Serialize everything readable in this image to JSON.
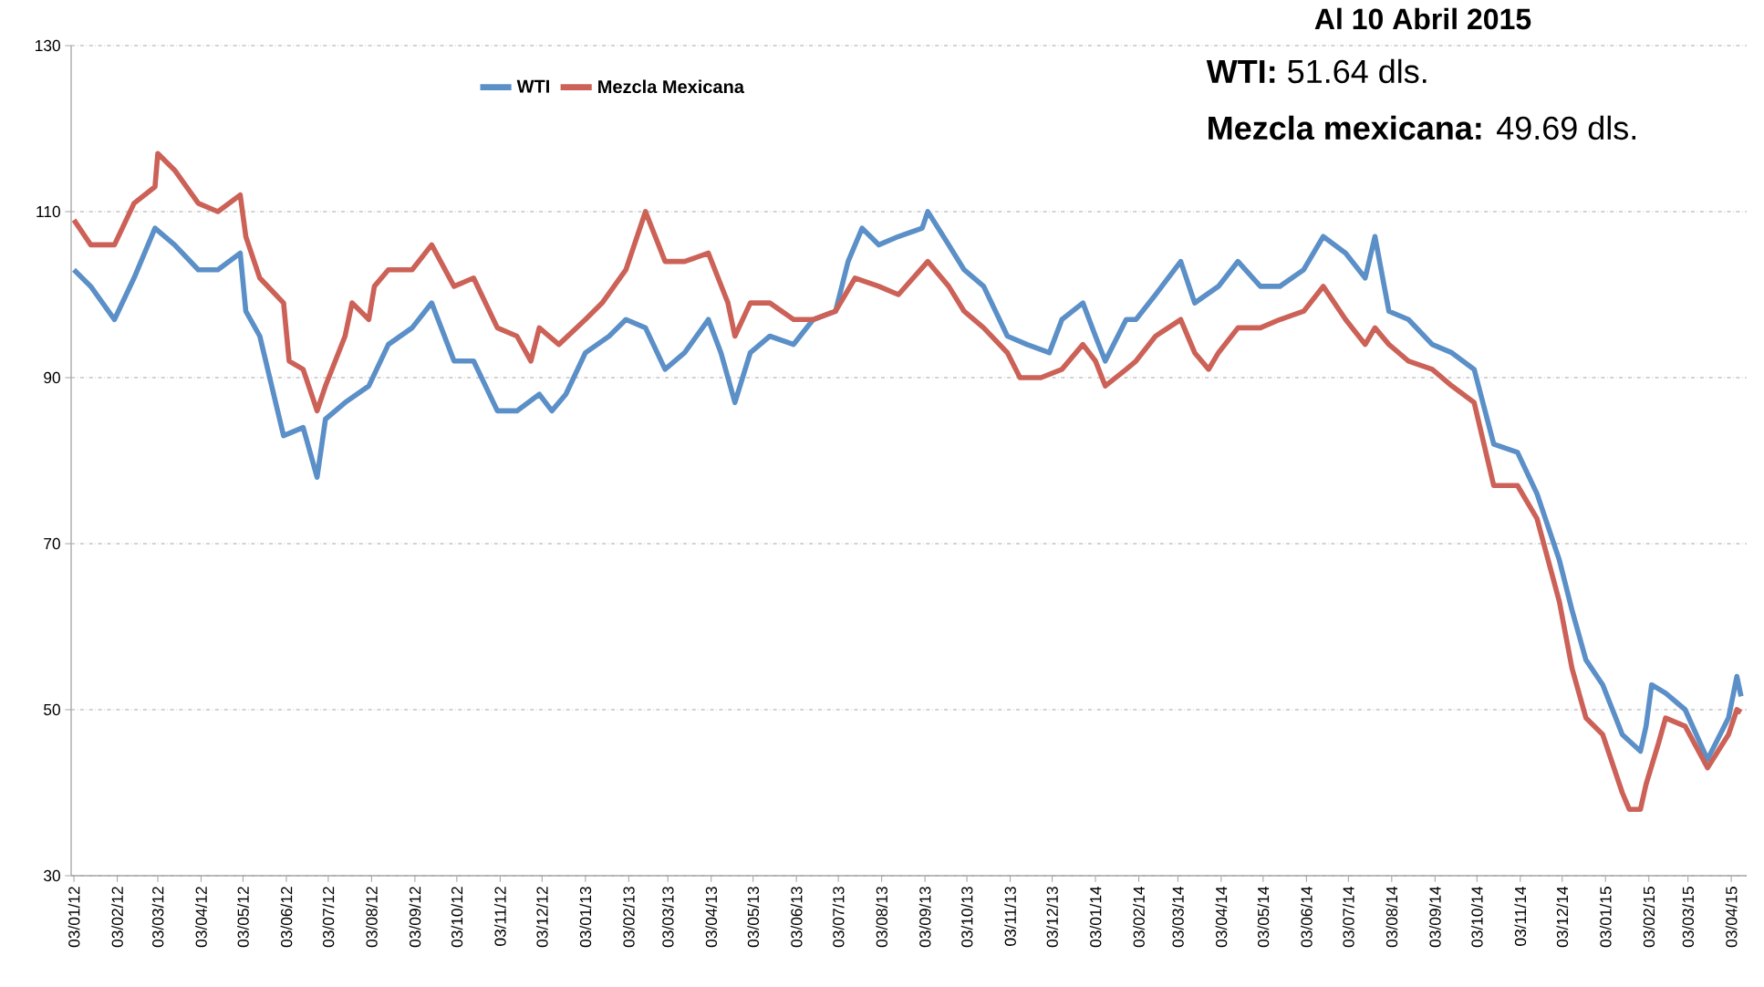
{
  "chart_data": {
    "type": "line",
    "title": "Al 10 Abril 2015",
    "annotations": [
      "**WTI:** 51.64 dls.",
      "**Mezcla mexicana:** 49.69 dls."
    ],
    "xlim": [
      "2012-01-01",
      "2015-04-14"
    ],
    "xticks": [
      {
        "value": "2012-01-03",
        "label": "03/01/12"
      },
      {
        "value": "2012-02-03",
        "label": "03/02/12"
      },
      {
        "value": "2012-03-03",
        "label": "03/03/12"
      },
      {
        "value": "2012-04-03",
        "label": "03/04/12"
      },
      {
        "value": "2012-05-03",
        "label": "03/05/12"
      },
      {
        "value": "2012-06-03",
        "label": "03/06/12"
      },
      {
        "value": "2012-07-03",
        "label": "03/07/12"
      },
      {
        "value": "2012-08-03",
        "label": "03/08/12"
      },
      {
        "value": "2012-09-03",
        "label": "03/09/12"
      },
      {
        "value": "2012-10-03",
        "label": "03/10/12"
      },
      {
        "value": "2012-11-03",
        "label": "03/11/12"
      },
      {
        "value": "2012-12-03",
        "label": "03/12/12"
      },
      {
        "value": "2013-01-03",
        "label": "03/01/13"
      },
      {
        "value": "2013-02-03",
        "label": "03/02/13"
      },
      {
        "value": "2013-03-03",
        "label": "03/03/13"
      },
      {
        "value": "2013-04-03",
        "label": "03/04/13"
      },
      {
        "value": "2013-05-03",
        "label": "03/05/13"
      },
      {
        "value": "2013-06-03",
        "label": "03/06/13"
      },
      {
        "value": "2013-07-03",
        "label": "03/07/13"
      },
      {
        "value": "2013-08-03",
        "label": "03/08/13"
      },
      {
        "value": "2013-09-03",
        "label": "03/09/13"
      },
      {
        "value": "2013-10-03",
        "label": "03/10/13"
      },
      {
        "value": "2013-11-03",
        "label": "03/11/13"
      },
      {
        "value": "2013-12-03",
        "label": "03/12/13"
      },
      {
        "value": "2014-01-03",
        "label": "03/01/14"
      },
      {
        "value": "2014-02-03",
        "label": "03/02/14"
      },
      {
        "value": "2014-03-03",
        "label": "03/03/14"
      },
      {
        "value": "2014-04-03",
        "label": "03/04/14"
      },
      {
        "value": "2014-05-03",
        "label": "03/05/14"
      },
      {
        "value": "2014-06-03",
        "label": "03/06/14"
      },
      {
        "value": "2014-07-03",
        "label": "03/07/14"
      },
      {
        "value": "2014-08-03",
        "label": "03/08/14"
      },
      {
        "value": "2014-09-03",
        "label": "03/09/14"
      },
      {
        "value": "2014-10-03",
        "label": "03/10/14"
      },
      {
        "value": "2014-11-03",
        "label": "03/11/14"
      },
      {
        "value": "2014-12-03",
        "label": "03/12/14"
      },
      {
        "value": "2015-01-03",
        "label": "03/01/15"
      },
      {
        "value": "2015-02-03",
        "label": "03/02/15"
      },
      {
        "value": "2015-03-03",
        "label": "03/03/15"
      },
      {
        "value": "2015-04-03",
        "label": "03/04/15"
      }
    ],
    "ylim": [
      30,
      130
    ],
    "yticks": [
      30,
      50,
      70,
      90,
      110,
      130
    ],
    "grid": "y",
    "legend": "top left",
    "marker": "none",
    "line_style": "solid",
    "series": [
      {
        "name": "WTI",
        "color": "#5b8fc7",
        "x": [
          "2012-01-03",
          "2012-01-15",
          "2012-02-01",
          "2012-02-15",
          "2012-03-01",
          "2012-03-15",
          "2012-04-01",
          "2012-04-15",
          "2012-05-01",
          "2012-05-05",
          "2012-05-15",
          "2012-06-01",
          "2012-06-15",
          "2012-06-25",
          "2012-07-01",
          "2012-07-15",
          "2012-08-01",
          "2012-08-15",
          "2012-09-01",
          "2012-09-15",
          "2012-10-01",
          "2012-10-15",
          "2012-11-01",
          "2012-11-15",
          "2012-12-01",
          "2012-12-10",
          "2012-12-20",
          "2013-01-03",
          "2013-01-20",
          "2013-02-01",
          "2013-02-15",
          "2013-03-01",
          "2013-03-15",
          "2013-04-01",
          "2013-04-10",
          "2013-04-20",
          "2013-05-01",
          "2013-05-15",
          "2013-06-01",
          "2013-06-15",
          "2013-07-01",
          "2013-07-10",
          "2013-07-20",
          "2013-08-01",
          "2013-08-15",
          "2013-09-01",
          "2013-09-05",
          "2013-09-20",
          "2013-10-01",
          "2013-10-15",
          "2013-11-01",
          "2013-11-15",
          "2013-12-01",
          "2013-12-10",
          "2013-12-25",
          "2014-01-03",
          "2014-01-10",
          "2014-01-25",
          "2014-02-01",
          "2014-02-15",
          "2014-03-05",
          "2014-03-15",
          "2014-04-01",
          "2014-04-15",
          "2014-05-01",
          "2014-05-15",
          "2014-06-01",
          "2014-06-15",
          "2014-07-01",
          "2014-07-15",
          "2014-07-22",
          "2014-08-01",
          "2014-08-15",
          "2014-09-01",
          "2014-09-15",
          "2014-10-01",
          "2014-10-15",
          "2014-11-01",
          "2014-11-15",
          "2014-12-01",
          "2014-12-10",
          "2014-12-20",
          "2015-01-01",
          "2015-01-15",
          "2015-01-28",
          "2015-02-01",
          "2015-02-05",
          "2015-02-15",
          "2015-03-01",
          "2015-03-17",
          "2015-04-01",
          "2015-04-07",
          "2015-04-10"
        ],
        "values": [
          103,
          101,
          97,
          102,
          108,
          106,
          103,
          103,
          105,
          98,
          95,
          83,
          84,
          78,
          85,
          87,
          89,
          94,
          96,
          99,
          92,
          92,
          86,
          86,
          88,
          86,
          88,
          93,
          95,
          97,
          96,
          91,
          93,
          97,
          93,
          87,
          93,
          95,
          94,
          97,
          98,
          104,
          108,
          106,
          107,
          108,
          110,
          106,
          103,
          101,
          95,
          94,
          93,
          97,
          99,
          95,
          92,
          97,
          97,
          100,
          104,
          99,
          101,
          104,
          101,
          101,
          103,
          107,
          105,
          102,
          107,
          98,
          97,
          94,
          93,
          91,
          82,
          81,
          76,
          68,
          62,
          56,
          53,
          47,
          45,
          48,
          53,
          52,
          50,
          44,
          49,
          54,
          51.6
        ]
      },
      {
        "name": "Mezcla Mexicana",
        "color": "#cc6157",
        "x": [
          "2012-01-03",
          "2012-01-15",
          "2012-02-01",
          "2012-02-15",
          "2012-03-01",
          "2012-03-03",
          "2012-03-15",
          "2012-04-01",
          "2012-04-15",
          "2012-05-01",
          "2012-05-05",
          "2012-05-15",
          "2012-06-01",
          "2012-06-05",
          "2012-06-15",
          "2012-06-25",
          "2012-07-01",
          "2012-07-15",
          "2012-07-20",
          "2012-08-01",
          "2012-08-05",
          "2012-08-15",
          "2012-09-01",
          "2012-09-15",
          "2012-10-01",
          "2012-10-15",
          "2012-11-01",
          "2012-11-15",
          "2012-11-25",
          "2012-12-01",
          "2012-12-15",
          "2013-01-03",
          "2013-01-15",
          "2013-02-01",
          "2013-02-15",
          "2013-03-01",
          "2013-03-15",
          "2013-04-01",
          "2013-04-15",
          "2013-04-20",
          "2013-05-01",
          "2013-05-15",
          "2013-06-01",
          "2013-06-15",
          "2013-07-01",
          "2013-07-15",
          "2013-08-01",
          "2013-08-15",
          "2013-09-05",
          "2013-09-20",
          "2013-10-01",
          "2013-10-15",
          "2013-11-01",
          "2013-11-10",
          "2013-11-25",
          "2013-12-10",
          "2013-12-25",
          "2014-01-03",
          "2014-01-10",
          "2014-01-25",
          "2014-02-01",
          "2014-02-15",
          "2014-03-05",
          "2014-03-15",
          "2014-03-25",
          "2014-04-01",
          "2014-04-15",
          "2014-05-01",
          "2014-05-15",
          "2014-06-01",
          "2014-06-15",
          "2014-07-01",
          "2014-07-15",
          "2014-07-22",
          "2014-08-01",
          "2014-08-15",
          "2014-09-01",
          "2014-09-15",
          "2014-10-01",
          "2014-10-15",
          "2014-11-01",
          "2014-11-15",
          "2014-12-01",
          "2014-12-10",
          "2014-12-20",
          "2015-01-01",
          "2015-01-15",
          "2015-01-20",
          "2015-01-28",
          "2015-02-01",
          "2015-02-10",
          "2015-02-15",
          "2015-03-01",
          "2015-03-17",
          "2015-04-01",
          "2015-04-07",
          "2015-04-10"
        ],
        "values": [
          109,
          106,
          106,
          111,
          113,
          117,
          115,
          111,
          110,
          112,
          107,
          102,
          99,
          92,
          91,
          86,
          89,
          95,
          99,
          97,
          101,
          103,
          103,
          106,
          101,
          102,
          96,
          95,
          92,
          96,
          94,
          97,
          99,
          103,
          110,
          104,
          104,
          105,
          99,
          95,
          99,
          99,
          97,
          97,
          98,
          102,
          101,
          100,
          104,
          101,
          98,
          96,
          93,
          90,
          90,
          91,
          94,
          92,
          89,
          91,
          92,
          95,
          97,
          93,
          91,
          93,
          96,
          96,
          97,
          98,
          101,
          97,
          94,
          96,
          94,
          92,
          91,
          89,
          87,
          77,
          77,
          73,
          63,
          55,
          49,
          47,
          40,
          38,
          38,
          41,
          46,
          49,
          48,
          43,
          47,
          50,
          49.7
        ]
      }
    ]
  }
}
